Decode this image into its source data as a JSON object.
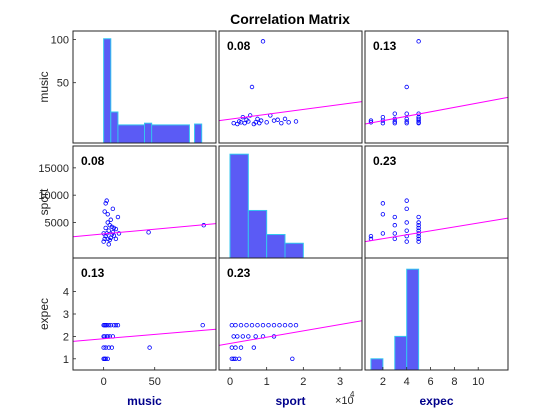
{
  "chart_data": {
    "type": "scatter",
    "title": "Correlation Matrix",
    "variables": [
      "music",
      "sport",
      "expec"
    ],
    "axis_x_label_color": "#00008b",
    "colors": {
      "bar_fill": "#5b5bf5",
      "bar_edge": "#33c6ef",
      "marker": "#0000ff",
      "fit_line": "#ff00ff"
    },
    "x_axes": [
      {
        "var": "music",
        "range": [
          -30,
          110
        ],
        "ticks": [
          0,
          50
        ],
        "tick_labels": [
          "0",
          "50"
        ]
      },
      {
        "var": "sport",
        "range": [
          -3000,
          36000
        ],
        "ticks": [
          0,
          10000,
          20000,
          30000
        ],
        "tick_labels": [
          "0",
          "1",
          "2",
          "3"
        ],
        "exponent_label": "×10",
        "exponent_power": "4"
      },
      {
        "var": "expec",
        "range": [
          0.5,
          12.5
        ],
        "ticks": [
          2,
          4,
          6,
          8,
          10
        ],
        "tick_labels": [
          "2",
          "4",
          "6",
          "8",
          "10"
        ]
      }
    ],
    "y_axes": [
      {
        "var": "music",
        "range": [
          -20,
          110
        ],
        "ticks": [
          50,
          100
        ],
        "tick_labels": [
          "50",
          "100"
        ]
      },
      {
        "var": "sport",
        "range": [
          -1500,
          19000
        ],
        "ticks": [
          5000,
          10000,
          15000
        ],
        "tick_labels": [
          "5000",
          "10000",
          "15000"
        ]
      },
      {
        "var": "expec",
        "range": [
          0.5,
          5.5
        ],
        "ticks": [
          1,
          2,
          3,
          4
        ],
        "tick_labels": [
          "1",
          "2",
          "3",
          "4"
        ]
      }
    ],
    "histograms": [
      {
        "var": "music",
        "bins": [
          [
            0,
            7,
            101
          ],
          [
            7,
            14,
            16
          ],
          [
            14,
            84,
            1
          ],
          [
            40,
            47,
            3
          ],
          [
            89,
            96,
            2
          ]
        ]
      },
      {
        "var": "sport",
        "bins": [
          [
            0,
            5000,
            17500
          ],
          [
            5000,
            10000,
            7200
          ],
          [
            10000,
            15000,
            2800
          ],
          [
            15000,
            20000,
            1200
          ]
        ]
      },
      {
        "var": "expec",
        "bins": [
          [
            1,
            2,
            1
          ],
          [
            2,
            3,
            0.5
          ],
          [
            3,
            4,
            2
          ],
          [
            4,
            5,
            5
          ]
        ]
      }
    ],
    "correlations": [
      {
        "row": 0,
        "col": 1,
        "r": "0.08"
      },
      {
        "row": 0,
        "col": 2,
        "r": "0.13"
      },
      {
        "row": 1,
        "col": 0,
        "r": "0.08"
      },
      {
        "row": 1,
        "col": 2,
        "r": "0.23"
      },
      {
        "row": 2,
        "col": 0,
        "r": "0.13"
      },
      {
        "row": 2,
        "col": 1,
        "r": "0.23"
      }
    ],
    "scatter_panels": [
      {
        "row": 0,
        "col": 1,
        "points": [
          [
            1000,
            3
          ],
          [
            2000,
            2
          ],
          [
            3000,
            4
          ],
          [
            4000,
            3
          ],
          [
            5000,
            5
          ],
          [
            6000,
            45
          ],
          [
            7000,
            4
          ],
          [
            8000,
            3
          ],
          [
            9000,
            98
          ],
          [
            10000,
            4
          ],
          [
            12000,
            6
          ],
          [
            14000,
            3
          ],
          [
            16000,
            4
          ],
          [
            18000,
            5
          ],
          [
            5500,
            12
          ],
          [
            3500,
            10
          ],
          [
            7500,
            8
          ],
          [
            11000,
            12
          ],
          [
            15000,
            8
          ],
          [
            2500,
            5
          ],
          [
            4500,
            7
          ],
          [
            6500,
            2
          ],
          [
            8500,
            6
          ],
          [
            13000,
            7
          ]
        ],
        "fit": [
          [
            -3000,
            6
          ],
          [
            36000,
            28
          ]
        ]
      },
      {
        "row": 0,
        "col": 2,
        "points": [
          [
            1,
            4
          ],
          [
            2,
            3
          ],
          [
            2,
            6
          ],
          [
            3,
            3
          ],
          [
            3,
            8
          ],
          [
            3,
            14
          ],
          [
            4,
            3
          ],
          [
            4,
            5
          ],
          [
            4,
            45
          ],
          [
            4,
            8
          ],
          [
            4,
            14
          ],
          [
            5,
            3
          ],
          [
            5,
            4
          ],
          [
            5,
            6
          ],
          [
            5,
            8
          ],
          [
            5,
            10
          ],
          [
            5,
            14
          ],
          [
            5,
            98
          ],
          [
            1,
            6
          ],
          [
            2,
            10
          ],
          [
            3,
            5
          ]
        ],
        "fit": [
          [
            0.5,
            2
          ],
          [
            12.5,
            33
          ]
        ]
      },
      {
        "row": 1,
        "col": 0,
        "points": [
          [
            0,
            1500
          ],
          [
            1,
            2000
          ],
          [
            2,
            2500
          ],
          [
            3,
            3000
          ],
          [
            4,
            5000
          ],
          [
            5,
            3500
          ],
          [
            6,
            4500
          ],
          [
            7,
            5500
          ],
          [
            8,
            2800
          ],
          [
            9,
            3200
          ],
          [
            10,
            4000
          ],
          [
            12,
            2000
          ],
          [
            14,
            6000
          ],
          [
            15,
            3000
          ],
          [
            1,
            7000
          ],
          [
            2,
            8500
          ],
          [
            3,
            9000
          ],
          [
            4,
            6500
          ],
          [
            5,
            1000
          ],
          [
            6,
            1800
          ],
          [
            7,
            2200
          ],
          [
            8,
            4200
          ],
          [
            10,
            2600
          ],
          [
            12,
            3800
          ],
          [
            44,
            3200
          ],
          [
            98,
            4500
          ],
          [
            0,
            3000
          ],
          [
            2,
            4000
          ],
          [
            4,
            2000
          ],
          [
            9,
            7500
          ]
        ],
        "fit": [
          [
            -30,
            2400
          ],
          [
            110,
            4800
          ]
        ]
      },
      {
        "row": 1,
        "col": 2,
        "points": [
          [
            1,
            2000
          ],
          [
            1,
            2500
          ],
          [
            2,
            3000
          ],
          [
            2,
            6500
          ],
          [
            2,
            8500
          ],
          [
            3,
            2000
          ],
          [
            3,
            3000
          ],
          [
            3,
            4500
          ],
          [
            3,
            6000
          ],
          [
            4,
            1500
          ],
          [
            4,
            2500
          ],
          [
            4,
            3500
          ],
          [
            4,
            5000
          ],
          [
            4,
            7500
          ],
          [
            4,
            9000
          ],
          [
            5,
            1500
          ],
          [
            5,
            2000
          ],
          [
            5,
            2500
          ],
          [
            5,
            3000
          ],
          [
            5,
            3500
          ],
          [
            5,
            4000
          ],
          [
            5,
            4500
          ],
          [
            5,
            5000
          ],
          [
            5,
            6000
          ]
        ],
        "fit": [
          [
            0.5,
            1500
          ],
          [
            12.5,
            5800
          ]
        ]
      },
      {
        "row": 2,
        "col": 0,
        "points": [
          [
            0,
            1
          ],
          [
            1,
            1
          ],
          [
            2,
            1
          ],
          [
            4,
            1
          ],
          [
            0,
            1.5
          ],
          [
            2,
            1.5
          ],
          [
            5,
            1.5
          ],
          [
            8,
            1.5
          ],
          [
            0,
            2
          ],
          [
            1,
            2
          ],
          [
            3,
            2
          ],
          [
            4,
            2
          ],
          [
            6,
            2
          ],
          [
            9,
            2
          ],
          [
            45,
            1.5
          ],
          [
            0,
            2.5
          ],
          [
            1,
            2.5
          ],
          [
            2,
            2.5
          ],
          [
            3,
            2.5
          ],
          [
            5,
            2.5
          ],
          [
            7,
            2.5
          ],
          [
            10,
            2.5
          ],
          [
            12,
            2.5
          ],
          [
            14,
            2.5
          ],
          [
            97,
            2.5
          ]
        ],
        "fit": [
          [
            -30,
            1.78
          ],
          [
            110,
            2.32
          ]
        ]
      },
      {
        "row": 2,
        "col": 1,
        "points": [
          [
            500,
            1
          ],
          [
            1000,
            1
          ],
          [
            1500,
            1
          ],
          [
            2500,
            1
          ],
          [
            500,
            1.5
          ],
          [
            1500,
            1.5
          ],
          [
            3000,
            1.5
          ],
          [
            6500,
            1.5
          ],
          [
            17000,
            1
          ],
          [
            1000,
            2
          ],
          [
            2000,
            2
          ],
          [
            3500,
            2
          ],
          [
            5000,
            2
          ],
          [
            7000,
            2
          ],
          [
            9000,
            2
          ],
          [
            12000,
            2
          ],
          [
            500,
            2.5
          ],
          [
            1500,
            2.5
          ],
          [
            3000,
            2.5
          ],
          [
            4500,
            2.5
          ],
          [
            6000,
            2.5
          ],
          [
            7500,
            2.5
          ],
          [
            9000,
            2.5
          ],
          [
            10500,
            2.5
          ],
          [
            12000,
            2.5
          ],
          [
            13500,
            2.5
          ],
          [
            15000,
            2.5
          ],
          [
            16500,
            2.5
          ],
          [
            18000,
            2.5
          ]
        ],
        "fit": [
          [
            -3000,
            1.6
          ],
          [
            36000,
            2.7
          ]
        ]
      }
    ]
  }
}
